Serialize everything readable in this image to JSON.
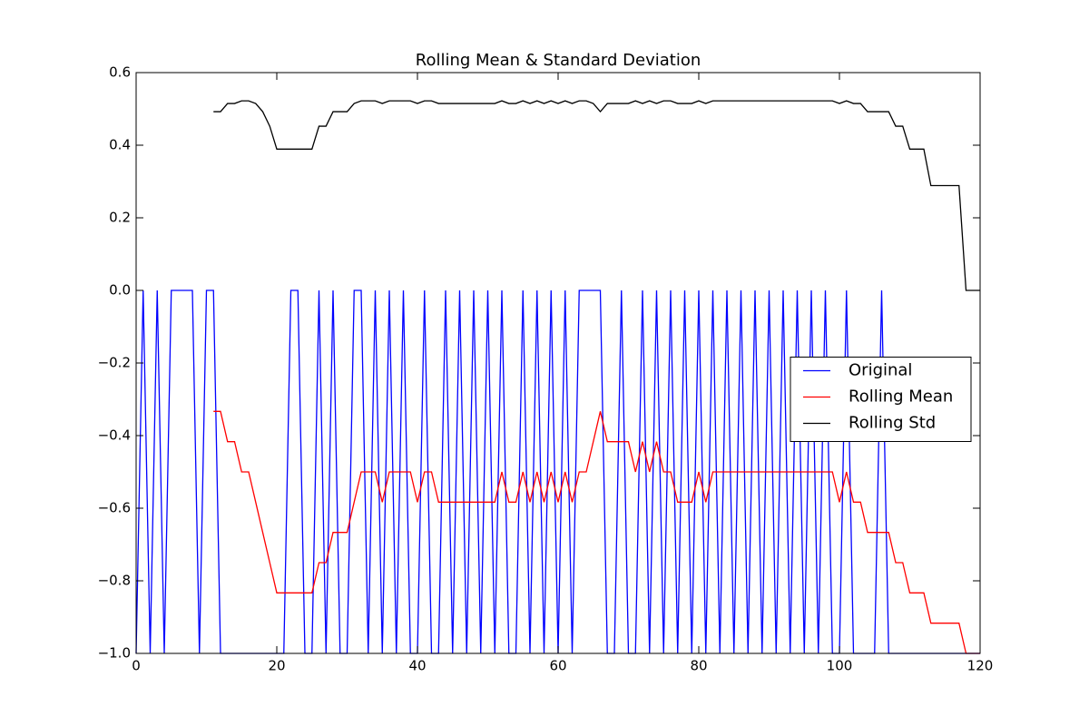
{
  "chart_data": {
    "type": "line",
    "title": "Rolling Mean & Standard Deviation",
    "x": [
      0,
      1,
      2,
      3,
      4,
      5,
      6,
      7,
      8,
      9,
      10,
      11,
      12,
      13,
      14,
      15,
      16,
      17,
      18,
      19,
      20,
      21,
      22,
      23,
      24,
      25,
      26,
      27,
      28,
      29,
      30,
      31,
      32,
      33,
      34,
      35,
      36,
      37,
      38,
      39,
      40,
      41,
      42,
      43,
      44,
      45,
      46,
      47,
      48,
      49,
      50,
      51,
      52,
      53,
      54,
      55,
      56,
      57,
      58,
      59,
      60,
      61,
      62,
      63,
      64,
      65,
      66,
      67,
      68,
      69,
      70,
      71,
      72,
      73,
      74,
      75,
      76,
      77,
      78,
      79,
      80,
      81,
      82,
      83,
      84,
      85,
      86,
      87,
      88,
      89,
      90,
      91,
      92,
      93,
      94,
      95,
      96,
      97,
      98,
      99,
      100,
      101,
      102,
      103,
      104,
      105,
      106,
      107,
      108,
      109,
      110,
      111,
      112,
      113,
      114,
      115,
      116,
      117,
      118,
      119,
      120
    ],
    "series": [
      {
        "name": "Original",
        "color": "#0000ff",
        "values": [
          -1,
          0,
          -1,
          0,
          -1,
          0,
          0,
          0,
          0,
          -1,
          0,
          0,
          -1,
          -1,
          -1,
          -1,
          -1,
          -1,
          -1,
          -1,
          -1,
          -1,
          0,
          0,
          -1,
          -1,
          0,
          -1,
          0,
          -1,
          -1,
          0,
          0,
          -1,
          0,
          -1,
          0,
          -1,
          0,
          -1,
          -1,
          0,
          -1,
          -1,
          0,
          -1,
          0,
          -1,
          0,
          -1,
          0,
          -1,
          0,
          -1,
          -1,
          0,
          -1,
          0,
          -1,
          0,
          -1,
          0,
          -1,
          0,
          0,
          0,
          0,
          -1,
          -1,
          0,
          -1,
          -1,
          0,
          -1,
          0,
          -1,
          0,
          -1,
          0,
          -1,
          0,
          -1,
          0,
          -1,
          0,
          -1,
          0,
          -1,
          0,
          -1,
          0,
          -1,
          0,
          -1,
          0,
          -1,
          0,
          -1,
          0,
          -1,
          -1,
          0,
          -1,
          -1,
          -1,
          -1,
          0,
          -1,
          -1,
          -1,
          -1,
          -1,
          -1,
          -1,
          -1,
          -1,
          -1,
          -1,
          -1,
          -1,
          -1
        ]
      },
      {
        "name": "Rolling Mean",
        "color": "#ff0000",
        "values": [
          null,
          null,
          null,
          null,
          null,
          null,
          null,
          null,
          null,
          null,
          null,
          -0.3333,
          -0.3333,
          -0.4167,
          -0.4167,
          -0.5,
          -0.5,
          -0.5833,
          -0.6667,
          -0.75,
          -0.8333,
          -0.8333,
          -0.8333,
          -0.8333,
          -0.8333,
          -0.8333,
          -0.75,
          -0.75,
          -0.6667,
          -0.6667,
          -0.6667,
          -0.5833,
          -0.5,
          -0.5,
          -0.5,
          -0.5833,
          -0.5,
          -0.5,
          -0.5,
          -0.5,
          -0.5833,
          -0.5,
          -0.5,
          -0.5833,
          -0.5833,
          -0.5833,
          -0.5833,
          -0.5833,
          -0.5833,
          -0.5833,
          -0.5833,
          -0.5833,
          -0.5,
          -0.5833,
          -0.5833,
          -0.5,
          -0.5833,
          -0.5,
          -0.5833,
          -0.5,
          -0.5833,
          -0.5,
          -0.5833,
          -0.5,
          -0.5,
          -0.4167,
          -0.3333,
          -0.4167,
          -0.4167,
          -0.4167,
          -0.4167,
          -0.5,
          -0.4167,
          -0.5,
          -0.4167,
          -0.5,
          -0.5,
          -0.5833,
          -0.5833,
          -0.5833,
          -0.5,
          -0.5833,
          -0.5,
          -0.5,
          -0.5,
          -0.5,
          -0.5,
          -0.5,
          -0.5,
          -0.5,
          -0.5,
          -0.5,
          -0.5,
          -0.5,
          -0.5,
          -0.5,
          -0.5,
          -0.5,
          -0.5,
          -0.5,
          -0.5833,
          -0.5,
          -0.5833,
          -0.5833,
          -0.6667,
          -0.6667,
          -0.6667,
          -0.6667,
          -0.75,
          -0.75,
          -0.8333,
          -0.8333,
          -0.8333,
          -0.9167,
          -0.9167,
          -0.9167,
          -0.9167,
          -0.9167,
          -1,
          -1,
          -1
        ]
      },
      {
        "name": "Rolling Std",
        "color": "#000000",
        "values": [
          null,
          null,
          null,
          null,
          null,
          null,
          null,
          null,
          null,
          null,
          null,
          0.4924,
          0.4924,
          0.5149,
          0.5149,
          0.5222,
          0.5222,
          0.5149,
          0.4924,
          0.4523,
          0.3892,
          0.3892,
          0.3892,
          0.3892,
          0.3892,
          0.3892,
          0.4523,
          0.4523,
          0.4924,
          0.4924,
          0.4924,
          0.5149,
          0.5222,
          0.5222,
          0.5222,
          0.5149,
          0.5222,
          0.5222,
          0.5222,
          0.5222,
          0.5149,
          0.5222,
          0.5222,
          0.5149,
          0.5149,
          0.5149,
          0.5149,
          0.5149,
          0.5149,
          0.5149,
          0.5149,
          0.5149,
          0.5222,
          0.5149,
          0.5149,
          0.5222,
          0.5149,
          0.5222,
          0.5149,
          0.5222,
          0.5149,
          0.5222,
          0.5149,
          0.5222,
          0.5222,
          0.5149,
          0.4924,
          0.5149,
          0.5149,
          0.5149,
          0.5149,
          0.5222,
          0.5149,
          0.5222,
          0.5149,
          0.5222,
          0.5222,
          0.5149,
          0.5149,
          0.5149,
          0.5222,
          0.5149,
          0.5222,
          0.5222,
          0.5222,
          0.5222,
          0.5222,
          0.5222,
          0.5222,
          0.5222,
          0.5222,
          0.5222,
          0.5222,
          0.5222,
          0.5222,
          0.5222,
          0.5222,
          0.5222,
          0.5222,
          0.5222,
          0.5149,
          0.5222,
          0.5149,
          0.5149,
          0.4924,
          0.4924,
          0.4924,
          0.4924,
          0.4523,
          0.4523,
          0.3892,
          0.3892,
          0.3892,
          0.2887,
          0.2887,
          0.2887,
          0.2887,
          0.2887,
          0,
          0,
          0
        ]
      }
    ],
    "xlim": [
      0,
      120
    ],
    "xticks": [
      0,
      20,
      40,
      60,
      80,
      100,
      120
    ],
    "ylim": [
      -1.0,
      0.6
    ],
    "yticks": [
      {
        "value": -1.0,
        "label": "−1.0"
      },
      {
        "value": -0.8,
        "label": "−0.8"
      },
      {
        "value": -0.6,
        "label": "−0.6"
      },
      {
        "value": -0.4,
        "label": "−0.4"
      },
      {
        "value": -0.2,
        "label": "−0.2"
      },
      {
        "value": 0.0,
        "label": "0.0"
      },
      0.2,
      0.4,
      0.6
    ],
    "legend": "center right",
    "grid": false
  }
}
